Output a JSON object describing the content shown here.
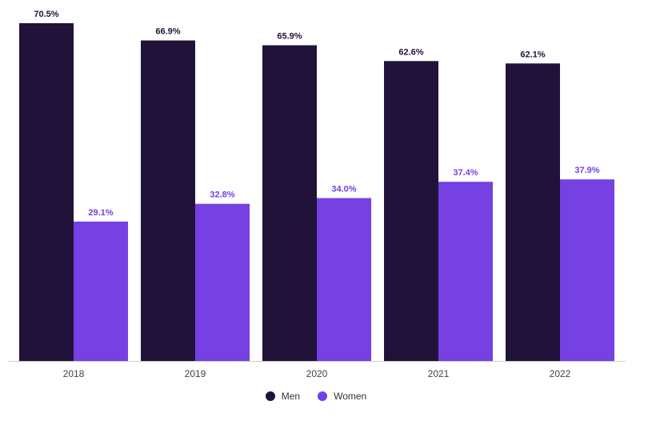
{
  "chart_data": {
    "type": "bar",
    "categories": [
      "2018",
      "2019",
      "2020",
      "2021",
      "2022"
    ],
    "series": [
      {
        "name": "Men",
        "values": [
          70.5,
          66.9,
          65.9,
          62.6,
          62.1
        ],
        "color": "#21123a"
      },
      {
        "name": "Women",
        "values": [
          29.1,
          32.8,
          34.0,
          37.4,
          37.9
        ],
        "color": "#7541e3"
      }
    ],
    "value_suffix": "%",
    "ylim": [
      0,
      70.5
    ],
    "grid": false,
    "legend": "bottom"
  }
}
